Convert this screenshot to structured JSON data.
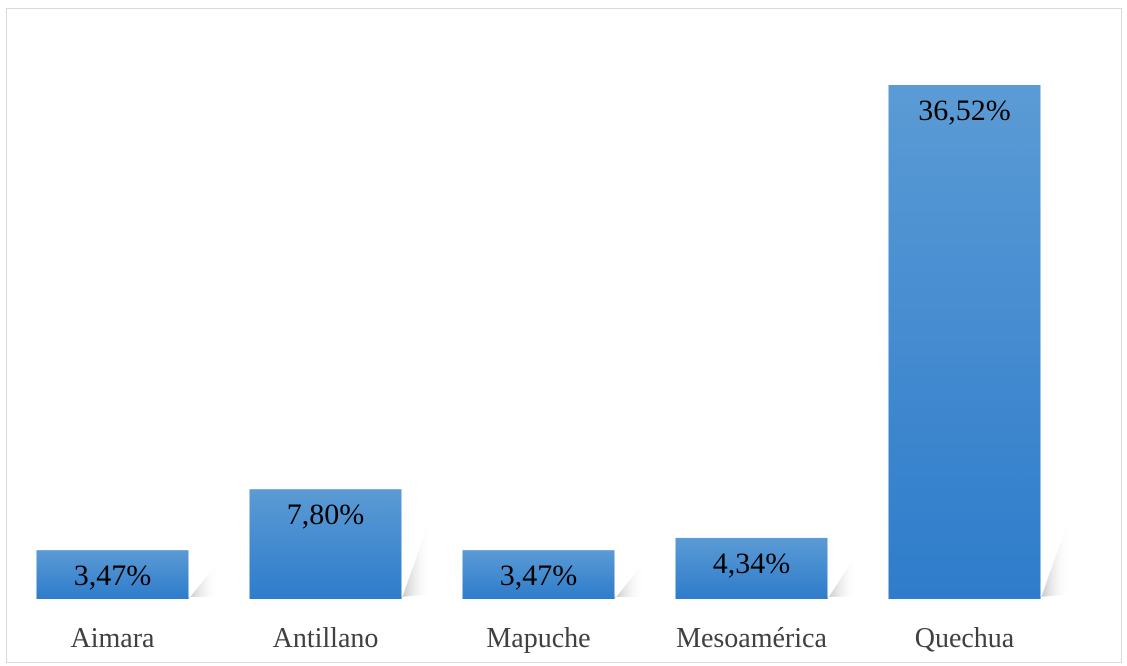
{
  "chart_data": {
    "type": "bar",
    "categories": [
      "Aimara",
      "Antillano",
      "Mapuche",
      "Mesoamérica",
      "Quechua"
    ],
    "values": [
      3.47,
      7.8,
      3.47,
      4.34,
      36.52
    ],
    "data_labels": [
      "3,47%",
      "7,80%",
      "3,47%",
      "4,34%",
      "36,52%"
    ],
    "unit": "%",
    "ylim": [
      0,
      40
    ],
    "grid": false,
    "legend": "none",
    "colors": {
      "bar_top": "#5b9bd5",
      "bar_bottom": "#2e7ccb",
      "border": "#d9d9d9"
    }
  }
}
